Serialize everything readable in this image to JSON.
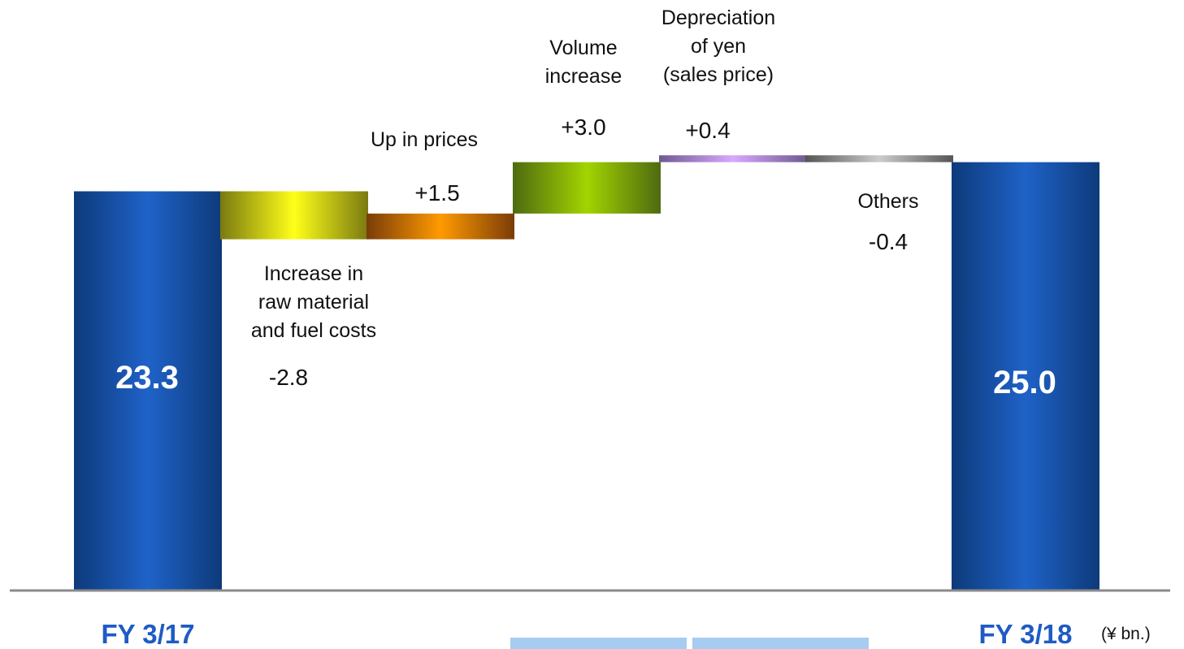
{
  "chart_data": {
    "type": "bar",
    "subtype": "waterfall",
    "unit": "(¥ bn.)",
    "ylim": [
      0,
      26.5
    ],
    "grid": false,
    "legend": "none",
    "steps": [
      {
        "id": "fy317",
        "kind": "total",
        "category": "FY 3/17",
        "value": 23.3,
        "display": "23.3",
        "label_lines": []
      },
      {
        "id": "rawmat",
        "kind": "delta",
        "category": "",
        "value": -2.8,
        "display": "-2.8",
        "label_lines": [
          "Increase in",
          "raw material",
          "and fuel costs"
        ]
      },
      {
        "id": "prices",
        "kind": "delta",
        "category": "",
        "value": 1.5,
        "display": "+1.5",
        "label_lines": [
          "Up in prices"
        ]
      },
      {
        "id": "volume",
        "kind": "delta",
        "category": "",
        "value": 3.0,
        "display": "+3.0",
        "label_lines": [
          "Volume",
          "increase"
        ]
      },
      {
        "id": "yen",
        "kind": "delta",
        "category": "",
        "value": 0.4,
        "display": "+0.4",
        "label_lines": [
          "Depreciation",
          "of yen",
          "(sales price)"
        ]
      },
      {
        "id": "others",
        "kind": "delta",
        "category": "",
        "value": -0.4,
        "display": "-0.4",
        "label_lines": [
          "Others"
        ]
      },
      {
        "id": "fy318",
        "kind": "total",
        "category": "FY 3/18",
        "value": 25.0,
        "display": "25.0",
        "label_lines": []
      }
    ],
    "colors": {
      "total_dark": "#0d3a7a",
      "total_light": "#1f62c8",
      "rawmat": [
        "#7a7a10",
        "#ffff1a"
      ],
      "prices": [
        "#7a3c08",
        "#ff9a00"
      ],
      "volume": [
        "#4e6a10",
        "#a2d400"
      ],
      "yen": [
        "#6e5a90",
        "#d9a8ff"
      ],
      "others": [
        "#555555",
        "#cccccc"
      ],
      "axis": "#8a8a8a",
      "category_text": "#1f5bc4",
      "legend_chip": "#a6ccf2"
    }
  }
}
